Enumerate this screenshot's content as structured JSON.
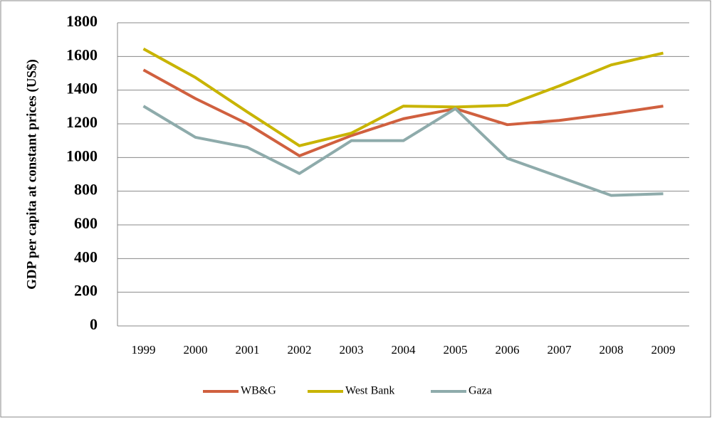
{
  "chart_data": {
    "type": "line",
    "y_label": "GDP per capita at constant prices (US$)",
    "categories": [
      "1999",
      "2000",
      "2001",
      "2002",
      "2003",
      "2004",
      "2005",
      "2006",
      "2007",
      "2008",
      "2009"
    ],
    "series": [
      {
        "name": "WB&G",
        "color": "#d0603f",
        "values": [
          1520,
          1350,
          1200,
          1010,
          1130,
          1230,
          1290,
          1195,
          1220,
          1260,
          1305
        ]
      },
      {
        "name": "West Bank",
        "color": "#c8b400",
        "values": [
          1645,
          1475,
          1270,
          1070,
          1145,
          1305,
          1300,
          1310,
          1425,
          1550,
          1620
        ]
      },
      {
        "name": "Gaza",
        "color": "#8eabab",
        "values": [
          1305,
          1120,
          1060,
          905,
          1100,
          1100,
          1290,
          995,
          885,
          775,
          785
        ]
      }
    ],
    "ylim": [
      0,
      1800
    ],
    "yticks": [
      0,
      200,
      400,
      600,
      800,
      1000,
      1200,
      1400,
      1600,
      1800
    ],
    "grid": true,
    "legend": "bottom"
  }
}
